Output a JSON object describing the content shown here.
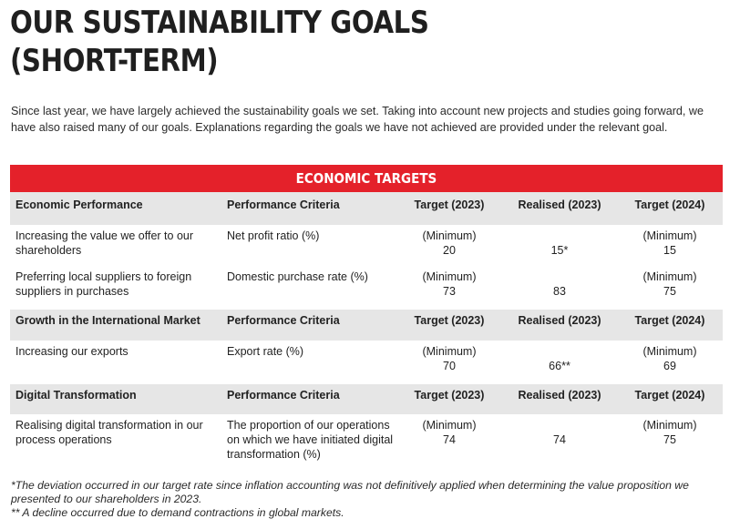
{
  "title": {
    "line1": "OUR SUSTAINABILITY GOALS",
    "line2": "(SHORT-TERM)"
  },
  "intro": "Since last year, we have largely achieved the sustainability goals we set. Taking into account new projects and studies going forward, we have also raised many of our goals. Explanations regarding the goals we have not achieved are provided under the relevant goal.",
  "band_title": "ECONOMIC TARGETS",
  "sections": [
    {
      "header": [
        "Economic Performance",
        "Performance Criteria",
        "Target (2023)",
        "Realised (2023)",
        "Target (2024)"
      ],
      "rows": [
        {
          "goal": "Increasing the value we offer to our shareholders",
          "criteria": "Net profit ratio (%)",
          "target_2023_label": "(Minimum)",
          "target_2023": "20",
          "realised_2023": "15*",
          "target_2024_label": "(Minimum)",
          "target_2024": "15"
        },
        {
          "goal": "Preferring local suppliers to foreign suppliers in purchases",
          "criteria": "Domestic purchase rate (%)",
          "target_2023_label": "(Minimum)",
          "target_2023": "73",
          "realised_2023": "83",
          "target_2024_label": "(Minimum)",
          "target_2024": "75"
        }
      ]
    },
    {
      "header": [
        "Growth in the International Market",
        "Performance Criteria",
        "Target (2023)",
        "Realised (2023)",
        "Target (2024)"
      ],
      "rows": [
        {
          "goal": "Increasing our exports",
          "criteria": "Export rate (%)",
          "target_2023_label": "(Minimum)",
          "target_2023": "70",
          "realised_2023": "66**",
          "target_2024_label": "(Minimum)",
          "target_2024": "69"
        }
      ]
    },
    {
      "header": [
        "Digital Transformation",
        "Performance Criteria",
        "Target (2023)",
        "Realised (2023)",
        "Target (2024)"
      ],
      "rows": [
        {
          "goal": "Realising digital transformation in our process operations",
          "criteria": "The proportion of our operations on which we have initiated digital transformation (%)",
          "target_2023_label": "(Minimum)",
          "target_2023": "74",
          "realised_2023": "74",
          "target_2024_label": "(Minimum)",
          "target_2024": "75"
        }
      ]
    }
  ],
  "footnotes": [
    "*The deviation occurred in our target rate since inflation accounting was not definitively applied when determining the value proposition we presented to our shareholders in 2023.",
    "** A decline occurred due to demand contractions in global markets."
  ],
  "colors": {
    "band": "#e4212a",
    "header_row": "#e6e6e6"
  }
}
